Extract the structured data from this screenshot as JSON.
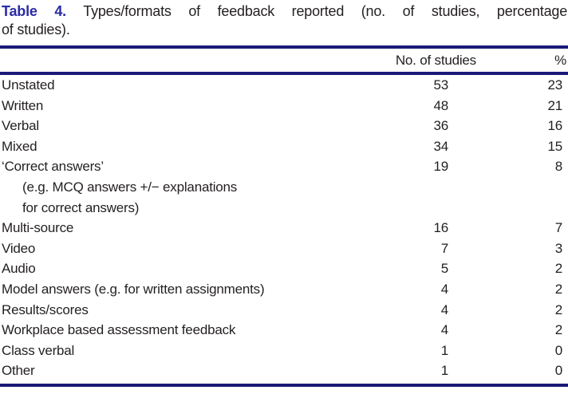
{
  "title": {
    "label": "Table 4.",
    "line1_rest": "Types/formats of feedback reported (no. of studies, percentage",
    "line2": "of studies)."
  },
  "table": {
    "columns": {
      "studies": "No. of studies",
      "percent": "%"
    },
    "rows": [
      {
        "label": "Unstated",
        "studies": "53",
        "percent": "23",
        "indent": false
      },
      {
        "label": "Written",
        "studies": "48",
        "percent": "21",
        "indent": false
      },
      {
        "label": "Verbal",
        "studies": "36",
        "percent": "16",
        "indent": false
      },
      {
        "label": "Mixed",
        "studies": "34",
        "percent": "15",
        "indent": false
      },
      {
        "label": "‘Correct answers’",
        "studies": "19",
        "percent": "8",
        "indent": false
      },
      {
        "label": "(e.g. MCQ answers +/− explanations",
        "studies": "",
        "percent": "",
        "indent": true
      },
      {
        "label": "for correct answers)",
        "studies": "",
        "percent": "",
        "indent": true
      },
      {
        "label": "Multi-source",
        "studies": "16",
        "percent": "7",
        "indent": false
      },
      {
        "label": "Video",
        "studies": "7",
        "percent": "3",
        "indent": false
      },
      {
        "label": "Audio",
        "studies": "5",
        "percent": "2",
        "indent": false
      },
      {
        "label": "Model answers (e.g. for written assignments)",
        "studies": "4",
        "percent": "2",
        "indent": false
      },
      {
        "label": "Results/scores",
        "studies": "4",
        "percent": "2",
        "indent": false
      },
      {
        "label": "Workplace based assessment feedback",
        "studies": "4",
        "percent": "2",
        "indent": false
      },
      {
        "label": "Class verbal",
        "studies": "1",
        "percent": "0",
        "indent": false
      },
      {
        "label": "Other",
        "studies": "1",
        "percent": "0",
        "indent": false
      }
    ]
  },
  "colors": {
    "rule_navy": "#1a1a78",
    "title_blue": "#2b2ba8",
    "text": "#231f20"
  }
}
